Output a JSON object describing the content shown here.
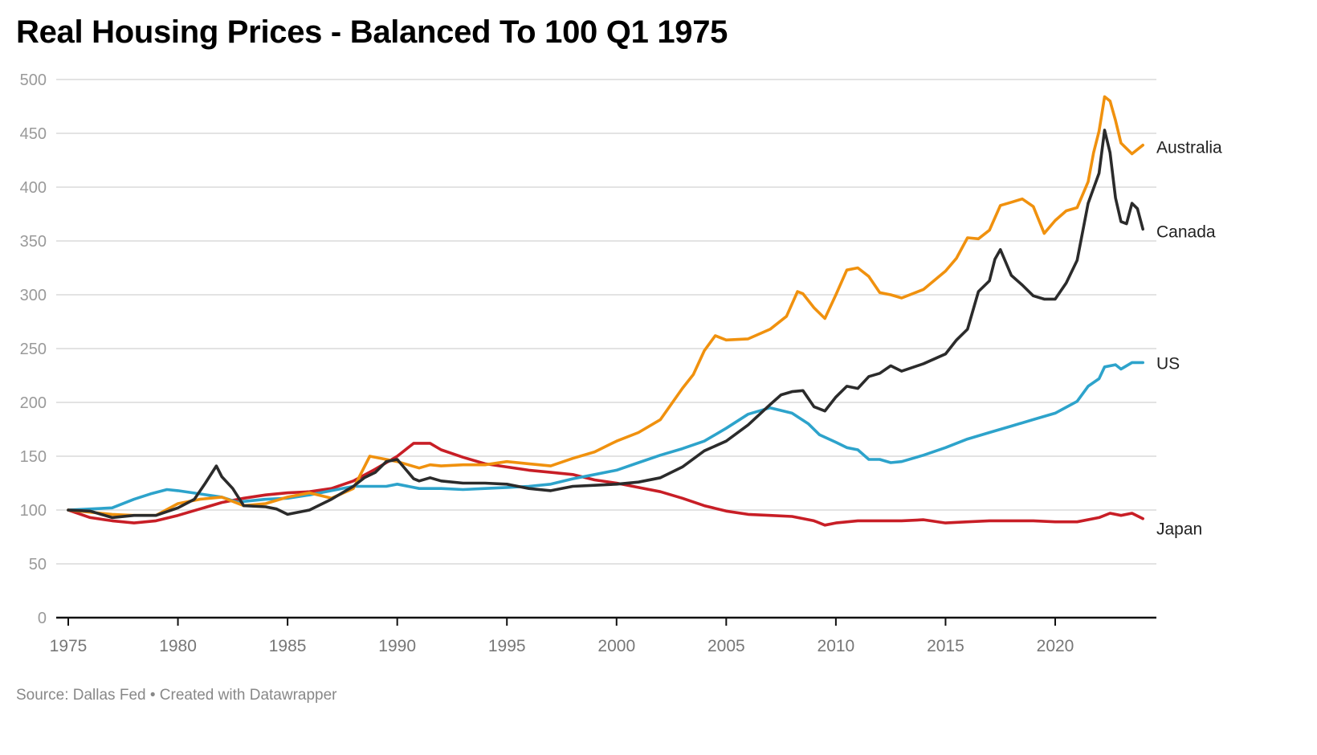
{
  "chart_data": {
    "type": "line",
    "title": "Real Housing Prices - Balanced To 100 Q1 1975",
    "xlabel": "",
    "ylabel": "",
    "ylim": [
      0,
      500
    ],
    "xlim": [
      1975,
      2024.5
    ],
    "yticks": [
      0,
      50,
      100,
      150,
      200,
      250,
      300,
      350,
      400,
      450,
      500
    ],
    "xticks": [
      1975,
      1980,
      1985,
      1990,
      1995,
      2000,
      2005,
      2010,
      2015,
      2020
    ],
    "grid": true,
    "legend": "direct-labels-right",
    "series": [
      {
        "name": "US",
        "color": "#2da3cb",
        "x": [
          1975,
          1976,
          1977,
          1978,
          1978.75,
          1979.5,
          1980,
          1981,
          1982,
          1982.75,
          1983,
          1984,
          1985,
          1986,
          1987,
          1988,
          1989,
          1989.5,
          1990,
          1991,
          1992,
          1993,
          1994,
          1995,
          1996,
          1997,
          1998,
          1999,
          2000,
          2001,
          2002,
          2003,
          2004,
          2005,
          2006,
          2007,
          2008,
          2008.75,
          2009.25,
          2010,
          2010.5,
          2011,
          2011.5,
          2012,
          2012.5,
          2013,
          2014,
          2015,
          2016,
          2017,
          2018,
          2019,
          2020,
          2021,
          2021.5,
          2022,
          2022.25,
          2022.75,
          2023,
          2023.5,
          2024
        ],
        "values": [
          100,
          101,
          102,
          110,
          115,
          119,
          118,
          115,
          112,
          107,
          108,
          110,
          111,
          114,
          118,
          122,
          122,
          122,
          124,
          120,
          120,
          119,
          120,
          121,
          122,
          124,
          129,
          133,
          137,
          144,
          151,
          157,
          164,
          176,
          189,
          195,
          190,
          180,
          170,
          163,
          158,
          156,
          147,
          147,
          144,
          145,
          151,
          158,
          166,
          172,
          178,
          184,
          190,
          201,
          215,
          222,
          233,
          235,
          231,
          237,
          237
        ]
      },
      {
        "name": "Australia",
        "color": "#f0910e",
        "x": [
          1975,
          1976,
          1977,
          1978,
          1979,
          1980,
          1981,
          1982,
          1983,
          1984,
          1985,
          1986,
          1987,
          1988,
          1988.75,
          1989.5,
          1990,
          1990.5,
          1991,
          1991.5,
          1992,
          1993,
          1994,
          1995,
          1996,
          1997,
          1998,
          1999,
          2000,
          2001,
          2002,
          2003,
          2003.5,
          2004,
          2004.5,
          2005,
          2006,
          2007,
          2007.75,
          2008.25,
          2008.5,
          2009,
          2009.5,
          2010,
          2010.5,
          2011,
          2011.5,
          2012,
          2012.5,
          2013,
          2014,
          2015,
          2015.5,
          2016,
          2016.5,
          2017,
          2017.5,
          2018,
          2018.5,
          2019,
          2019.5,
          2020,
          2020.5,
          2021,
          2021.5,
          2021.75,
          2022,
          2022.25,
          2022.5,
          2022.75,
          2023,
          2023.5,
          2024
        ],
        "values": [
          100,
          98,
          96,
          95,
          95,
          106,
          110,
          112,
          104,
          106,
          112,
          116,
          111,
          120,
          150,
          147,
          145,
          142,
          139,
          142,
          141,
          142,
          142,
          145,
          143,
          141,
          148,
          154,
          164,
          172,
          184,
          213,
          226,
          248,
          262,
          258,
          259,
          268,
          280,
          303,
          301,
          288,
          278,
          300,
          323,
          325,
          317,
          302,
          300,
          297,
          305,
          322,
          334,
          353,
          352,
          360,
          383,
          386,
          389,
          382,
          357,
          369,
          378,
          381,
          405,
          432,
          452,
          484,
          480,
          462,
          441,
          431,
          439
        ]
      },
      {
        "name": "Canada",
        "color": "#2b2b2b",
        "x": [
          1975,
          1976,
          1977,
          1978,
          1979,
          1980,
          1980.75,
          1981.25,
          1981.75,
          1982,
          1982.5,
          1983,
          1984,
          1984.5,
          1985,
          1986,
          1987,
          1988,
          1988.5,
          1989,
          1989.5,
          1990,
          1990.75,
          1991,
          1991.5,
          1992,
          1993,
          1994,
          1995,
          1996,
          1997,
          1998,
          1999,
          2000,
          2001,
          2002,
          2003,
          2004,
          2005,
          2006,
          2007,
          2007.5,
          2008,
          2008.5,
          2009,
          2009.5,
          2010,
          2010.5,
          2011,
          2011.5,
          2012,
          2012.5,
          2013,
          2014,
          2015,
          2015.5,
          2016,
          2016.5,
          2017,
          2017.25,
          2017.5,
          2018,
          2018.5,
          2019,
          2019.5,
          2020,
          2020.5,
          2021,
          2021.5,
          2022,
          2022.25,
          2022.5,
          2022.75,
          2023,
          2023.25,
          2023.5,
          2023.75,
          2024
        ],
        "values": [
          100,
          99,
          93,
          95,
          95,
          102,
          110,
          125,
          141,
          131,
          120,
          104,
          103,
          101,
          96,
          100,
          110,
          122,
          130,
          135,
          145,
          147,
          129,
          127,
          130,
          127,
          125,
          125,
          124,
          120,
          118,
          122,
          123,
          124,
          126,
          130,
          140,
          155,
          164,
          179,
          198,
          207,
          210,
          211,
          196,
          192,
          205,
          215,
          213,
          224,
          227,
          234,
          229,
          236,
          245,
          258,
          268,
          303,
          313,
          333,
          342,
          318,
          309,
          299,
          296,
          296,
          311,
          332,
          385,
          413,
          453,
          432,
          390,
          368,
          366,
          385,
          380,
          361
        ]
      },
      {
        "name": "Japan",
        "color": "#c81e26",
        "x": [
          1975,
          1976,
          1977,
          1978,
          1979,
          1980,
          1981,
          1982,
          1983,
          1984,
          1985,
          1986,
          1987,
          1988,
          1989,
          1990,
          1990.75,
          1991.5,
          1992,
          1993,
          1994,
          1995,
          1996,
          1997,
          1998,
          1999,
          2000,
          2001,
          2002,
          2003,
          2004,
          2005,
          2006,
          2007,
          2008,
          2009,
          2009.5,
          2010,
          2011,
          2012,
          2013,
          2014,
          2015,
          2016,
          2017,
          2018,
          2019,
          2020,
          2021,
          2022,
          2022.5,
          2023,
          2023.5,
          2024
        ],
        "values": [
          100,
          93,
          90,
          88,
          90,
          95,
          101,
          107,
          111,
          114,
          116,
          117,
          120,
          127,
          138,
          150,
          162,
          162,
          156,
          149,
          143,
          140,
          137,
          135,
          133,
          128,
          125,
          121,
          117,
          111,
          104,
          99,
          96,
          95,
          94,
          90,
          86,
          88,
          90,
          90,
          90,
          91,
          88,
          89,
          90,
          90,
          90,
          89,
          89,
          93,
          97,
          95,
          97,
          92
        ]
      }
    ]
  },
  "source_text": "Source: Dallas Fed • Created with Datawrapper"
}
